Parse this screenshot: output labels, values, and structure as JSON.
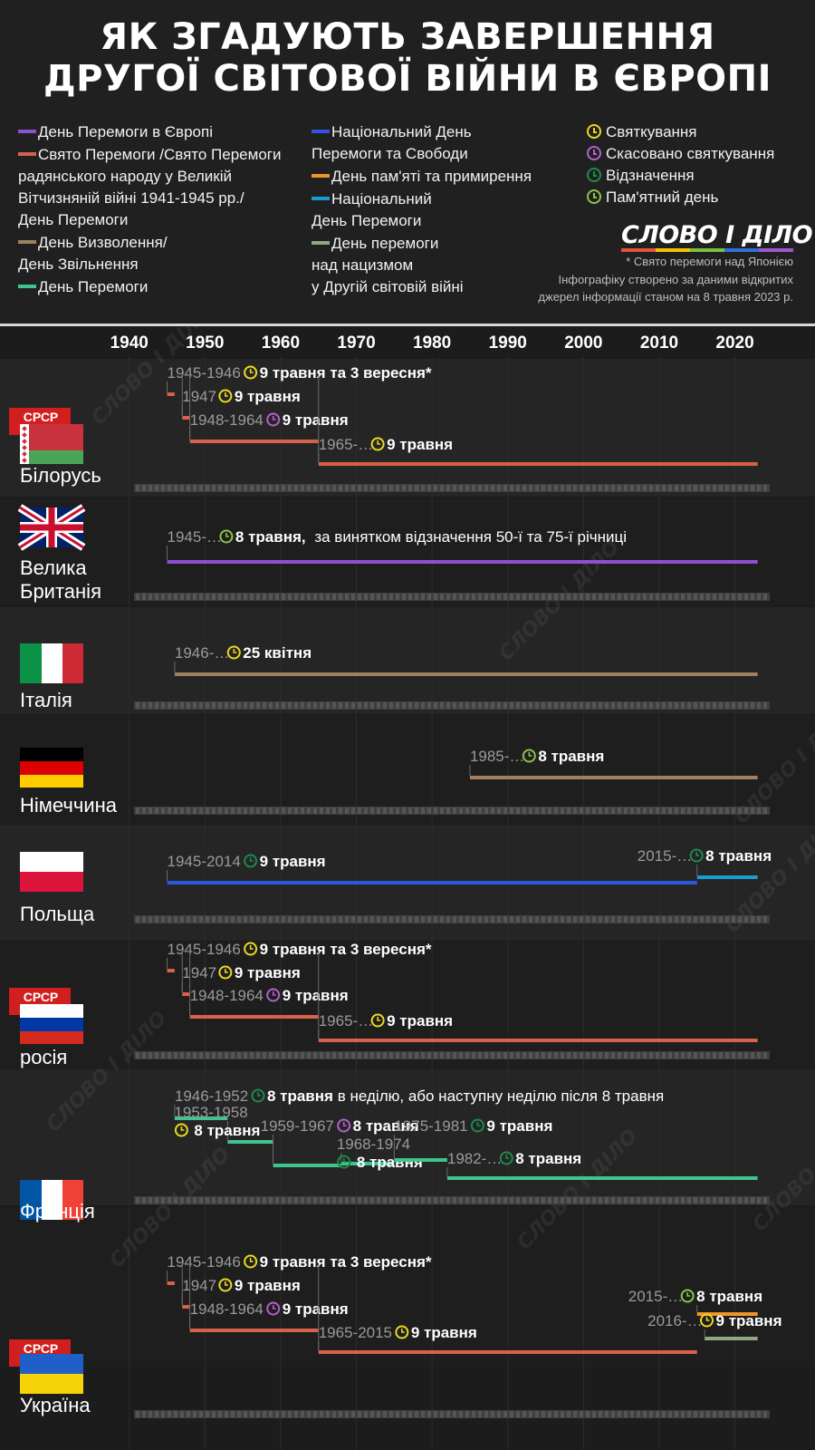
{
  "header": {
    "title_lines": [
      "ЯК ЗГАДУЮТЬ ЗАВЕРШЕННЯ",
      "ДРУГОЇ СВІТОВОЇ ВІЙНИ В ЄВРОПІ"
    ],
    "logo_text": "СЛОВО І ДІЛО",
    "logo_colors": [
      "#e0533d",
      "#f2c200",
      "#7ac142",
      "#2f6fdb",
      "#9b59d0"
    ],
    "note_1": "* Свято перемоги над Японією",
    "note_2": "Інфографіку створено за даними відкритих",
    "note_3": "джерел інформації станом на 8 травня 2023 р."
  },
  "legend": {
    "col1": [
      {
        "label": "День Перемоги в Європі",
        "color": "#8e4fd1"
      },
      {
        "label": "Свято Перемоги /Свято Перемоги\nрадянського народу у Великій\nВітчизняній війні 1941-1945 рр./\nДень Перемоги",
        "color": "#d9604a"
      },
      {
        "label": "День Визволення/\nДень Звільнення",
        "color": "#a08060"
      },
      {
        "label": "День Перемоги",
        "color": "#3ec48e"
      }
    ],
    "col2": [
      {
        "label": "Національний День\nПеремоги та Свободи",
        "color": "#2f56e0"
      },
      {
        "label": "День пам'яті та примирення",
        "color": "#f0962a"
      },
      {
        "label": "Національний\nДень Перемоги",
        "color": "#1b9bcf"
      },
      {
        "label": "День перемоги\nнад нацизмом\nу Другій світовій війні",
        "color": "#8fa882"
      }
    ],
    "col3": [
      {
        "label": "Святкування",
        "color": "#ecd820"
      },
      {
        "label": "Скасовано святкування",
        "color": "#b460cc"
      },
      {
        "label": "Відзначення",
        "color": "#1f8a4c"
      },
      {
        "label": "Пам'ятний день",
        "color": "#8bc34a"
      }
    ]
  },
  "chart_data": {
    "type": "timeline",
    "x_axis": {
      "range": [
        1938,
        2024
      ],
      "ticks": [
        1940,
        1950,
        1960,
        1970,
        1980,
        1990,
        2000,
        2010,
        2020
      ]
    },
    "category_colors": {
      "ve": "#8e4fd1",
      "sv": "#d9604a",
      "lib": "#a08060",
      "dp": "#3ec48e",
      "nat": "#2f56e0",
      "mem": "#f0962a",
      "natv": "#1b9bcf",
      "naz": "#8fa882"
    },
    "icon_colors": {
      "celebration": "#ecd820",
      "cancelled": "#b460cc",
      "marking": "#1f8a4c",
      "memorial": "#8bc34a"
    },
    "countries": [
      {
        "name": [
          "Білорусь"
        ],
        "flag": "by",
        "ussr": true,
        "ussr_label": "СРСР",
        "periods": [
          {
            "start": 1945,
            "end": 1946,
            "label": "1945-1946",
            "icon": "celebration",
            "date": "9 травня та 3 вересня*",
            "note": "",
            "color": "sv"
          },
          {
            "start": 1947,
            "end": 1948,
            "label": "1947",
            "icon": "celebration",
            "date": "9 травня",
            "note": "",
            "color": "sv"
          },
          {
            "start": 1948,
            "end": 1965,
            "label": "1948-1964",
            "icon": "cancelled",
            "date": "9 травня",
            "note": "",
            "color": "sv"
          },
          {
            "start": 1965,
            "end": 2023,
            "label": "1965-…",
            "icon": "celebration",
            "date": "9 травня",
            "note": "",
            "color": "sv"
          }
        ]
      },
      {
        "name": [
          "Велика",
          "Британія"
        ],
        "flag": "gb",
        "ussr": false,
        "periods": [
          {
            "start": 1945,
            "end": 2023,
            "label": "1945-…",
            "icon": "memorial",
            "date": "8 травня,",
            "note": " за винятком відзначення 50-ї та 75-ї річниці",
            "color": "ve"
          }
        ]
      },
      {
        "name": [
          "Італія"
        ],
        "flag": "it",
        "ussr": false,
        "periods": [
          {
            "start": 1946,
            "end": 2023,
            "label": "1946-…",
            "icon": "celebration",
            "date": "25 квітня",
            "note": "",
            "color": "lib"
          }
        ]
      },
      {
        "name": [
          "Німеччина"
        ],
        "flag": "de",
        "ussr": false,
        "periods": [
          {
            "start": 1985,
            "end": 2023,
            "label": "1985-…",
            "icon": "memorial",
            "date": "8 травня",
            "note": "",
            "color": "lib"
          }
        ]
      },
      {
        "name": [
          "Польща"
        ],
        "flag": "pl",
        "ussr": false,
        "periods": [
          {
            "start": 1945,
            "end": 2015,
            "label": "1945-2014",
            "icon": "marking",
            "date": "9 травня",
            "note": "",
            "color": "nat"
          },
          {
            "start": 2015,
            "end": 2023,
            "label": "2015-…",
            "icon": "marking",
            "date": "8 травня",
            "note": "",
            "color": "natv"
          }
        ]
      },
      {
        "name": [
          "росія"
        ],
        "flag": "ru",
        "ussr": true,
        "ussr_label": "СРСР",
        "periods": [
          {
            "start": 1945,
            "end": 1946,
            "label": "1945-1946",
            "icon": "celebration",
            "date": "9 травня та 3 вересня*",
            "note": "",
            "color": "sv"
          },
          {
            "start": 1947,
            "end": 1948,
            "label": "1947",
            "icon": "celebration",
            "date": "9 травня",
            "note": "",
            "color": "sv"
          },
          {
            "start": 1948,
            "end": 1965,
            "label": "1948-1964",
            "icon": "cancelled",
            "date": "9 травня",
            "note": "",
            "color": "sv"
          },
          {
            "start": 1965,
            "end": 2023,
            "label": "1965-…",
            "icon": "celebration",
            "date": "9 травня",
            "note": "",
            "color": "sv"
          }
        ]
      },
      {
        "name": [
          "Франція"
        ],
        "flag": "fr",
        "ussr": false,
        "periods": [
          {
            "start": 1946,
            "end": 1953,
            "label": "1946-1952",
            "icon": "marking",
            "date": "8 травня",
            "note": " в неділю, або наступну неділю після 8 травня",
            "color": "dp"
          },
          {
            "start": 1953,
            "end": 1959,
            "label": "1953-1958",
            "icon": "celebration",
            "date": "8 травня",
            "note": "",
            "color": "dp"
          },
          {
            "start": 1959,
            "end": 1968,
            "label": "1959-1967",
            "icon": "cancelled",
            "date": "8 травня",
            "note": "",
            "color": "dp"
          },
          {
            "start": 1968,
            "end": 1975,
            "label": "1968-1974",
            "icon": "marking",
            "date": "8 травня",
            "note": "",
            "color": "dp"
          },
          {
            "start": 1975,
            "end": 1982,
            "label": "1975-1981",
            "icon": "marking",
            "date": "9 травня",
            "note": "",
            "color": "dp"
          },
          {
            "start": 1982,
            "end": 2023,
            "label": "1982-…",
            "icon": "marking",
            "date": "8 травня",
            "note": "",
            "color": "dp"
          }
        ]
      },
      {
        "name": [
          "Україна"
        ],
        "flag": "ua",
        "ussr": true,
        "ussr_label": "СРСР",
        "periods": [
          {
            "start": 1945,
            "end": 1946,
            "label": "1945-1946",
            "icon": "celebration",
            "date": "9 травня та 3 вересня*",
            "note": "",
            "color": "sv"
          },
          {
            "start": 1947,
            "end": 1948,
            "label": "1947",
            "icon": "celebration",
            "date": "9 травня",
            "note": "",
            "color": "sv"
          },
          {
            "start": 1948,
            "end": 1965,
            "label": "1948-1964",
            "icon": "cancelled",
            "date": "9 травня",
            "note": "",
            "color": "sv"
          },
          {
            "start": 1965,
            "end": 2015,
            "label": "1965-2015",
            "icon": "celebration",
            "date": "9 травня",
            "note": "",
            "color": "sv"
          },
          {
            "start": 2015,
            "end": 2023,
            "label": "2015-…",
            "icon": "memorial",
            "date": "8 травня",
            "note": "",
            "color": "mem"
          },
          {
            "start": 2016,
            "end": 2023,
            "label": "2016-…",
            "icon": "celebration",
            "date": "9 травня",
            "note": "",
            "color": "naz"
          }
        ]
      }
    ]
  }
}
